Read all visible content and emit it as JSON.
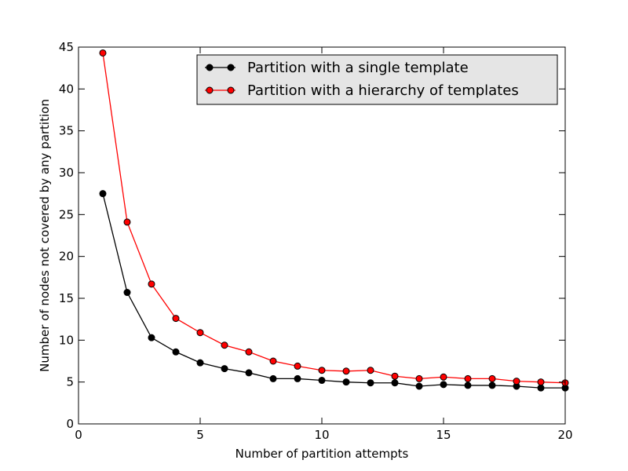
{
  "chart_data": {
    "type": "line",
    "title": "",
    "xlabel": "Number of partition attempts",
    "ylabel": "Number of nodes not covered by any partition",
    "xlim": [
      0,
      20
    ],
    "ylim": [
      0,
      45
    ],
    "xticks": [
      0,
      5,
      10,
      15,
      20
    ],
    "yticks": [
      0,
      5,
      10,
      15,
      20,
      25,
      30,
      35,
      40,
      45
    ],
    "grid": false,
    "legend_position": "top-right",
    "legend_background": "#e5e5e5",
    "x": [
      1,
      2,
      3,
      4,
      5,
      6,
      7,
      8,
      9,
      10,
      11,
      12,
      13,
      14,
      15,
      16,
      17,
      18,
      19,
      20
    ],
    "series": [
      {
        "name": "Partition with a single template",
        "color": "#000000",
        "marker": "circle",
        "values": [
          27.5,
          15.7,
          10.3,
          8.6,
          7.3,
          6.6,
          6.1,
          5.4,
          5.4,
          5.2,
          5.0,
          4.9,
          4.9,
          4.5,
          4.7,
          4.6,
          4.6,
          4.5,
          4.3,
          4.3
        ]
      },
      {
        "name": "Partition with a hierarchy of templates",
        "color": "#ff0000",
        "marker": "circle",
        "values": [
          44.3,
          24.1,
          16.7,
          12.6,
          10.9,
          9.4,
          8.6,
          7.5,
          6.9,
          6.4,
          6.3,
          6.4,
          5.7,
          5.4,
          5.6,
          5.4,
          5.4,
          5.1,
          5.0,
          4.9
        ]
      }
    ]
  }
}
